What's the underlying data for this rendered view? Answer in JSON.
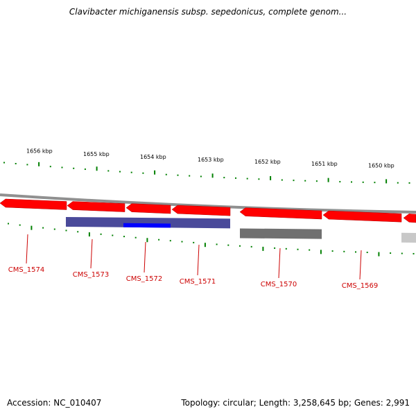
{
  "title": "Clavibacter michiganensis subsp. sepedonicus, complete genom...",
  "footer": {
    "accession": "Accession: NC_010407",
    "summary": "Topology: circular; Length: 3,258,645 bp; Genes: 2,991"
  },
  "colors": {
    "forward_gene": "#ff0000",
    "reverse_gene": "#4a4a9a",
    "highlight_gene": "#0000ff",
    "gray_feature": "#707070",
    "light_gray_feature": "#c8c8c8",
    "backbone": "#909090",
    "tick": "#008000",
    "label": "#cc0000"
  },
  "kbp_labels": [
    "1656 kbp",
    "1655 kbp",
    "1654 kbp",
    "1653 kbp",
    "1652 kbp",
    "1651 kbp",
    "1650 kbp"
  ],
  "gene_labels": [
    "CMS_1574",
    "CMS_1573",
    "CMS_1572",
    "CMS_1571",
    "CMS_1570",
    "CMS_1569"
  ]
}
